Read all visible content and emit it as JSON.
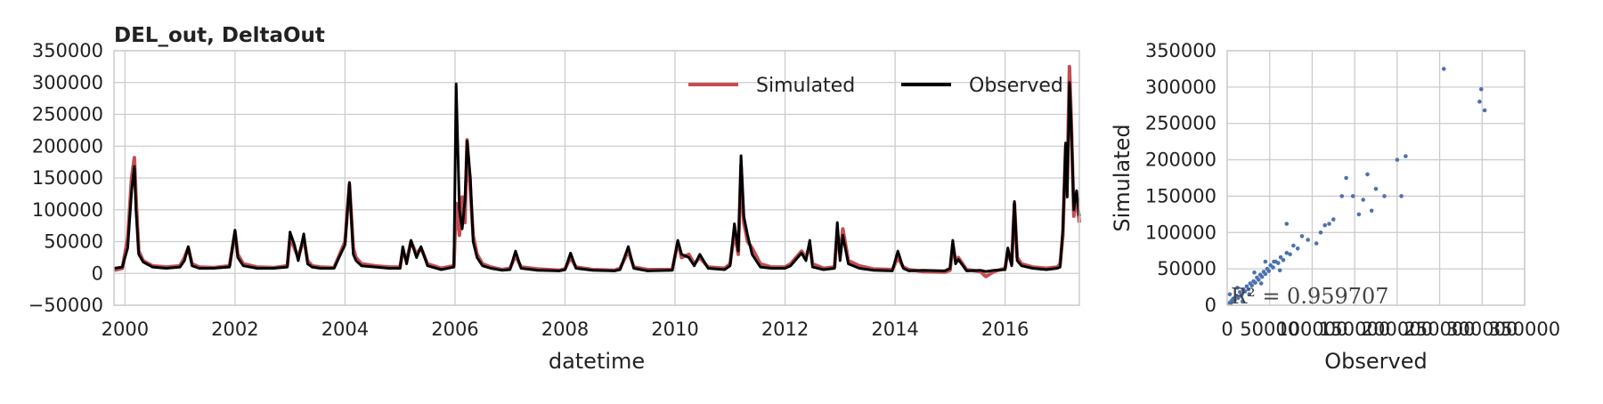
{
  "chart_data": [
    {
      "type": "line",
      "title": "DEL_out, DeltaOut",
      "xlabel": "datetime",
      "ylabel": "",
      "xlim": [
        1999.8,
        2017.35
      ],
      "ylim": [
        -50000,
        350000
      ],
      "xticks": [
        2000,
        2002,
        2004,
        2006,
        2008,
        2010,
        2012,
        2014,
        2016
      ],
      "xtick_labels": [
        "2000",
        "2002",
        "2004",
        "2006",
        "2008",
        "2010",
        "2012",
        "2014",
        "2016"
      ],
      "yticks": [
        -50000,
        0,
        50000,
        100000,
        150000,
        200000,
        250000,
        300000,
        350000
      ],
      "ytick_labels": [
        "−50000",
        "0",
        "50000",
        "100000",
        "150000",
        "200000",
        "250000",
        "300000",
        "350000"
      ],
      "grid": true,
      "legend_position": "top-right",
      "series": [
        {
          "name": "Simulated",
          "color": "#c44e52",
          "x": [
            1999.8,
            1999.95,
            2000.05,
            2000.12,
            2000.17,
            2000.2,
            2000.25,
            2000.33,
            2000.5,
            2000.75,
            2001.0,
            2001.08,
            2001.15,
            2001.22,
            2001.35,
            2001.6,
            2001.9,
            2002.0,
            2002.05,
            2002.15,
            2002.4,
            2002.7,
            2002.95,
            2003.0,
            2003.08,
            2003.15,
            2003.25,
            2003.32,
            2003.4,
            2003.55,
            2003.8,
            2004.0,
            2004.08,
            2004.15,
            2004.2,
            2004.3,
            2004.55,
            2004.8,
            2005.0,
            2005.05,
            2005.12,
            2005.2,
            2005.3,
            2005.38,
            2005.5,
            2005.75,
            2005.98,
            2006.02,
            2006.08,
            2006.13,
            2006.18,
            2006.22,
            2006.28,
            2006.33,
            2006.4,
            2006.5,
            2006.65,
            2006.85,
            2007.0,
            2007.1,
            2007.2,
            2007.5,
            2007.9,
            2008.0,
            2008.1,
            2008.2,
            2008.5,
            2008.9,
            2009.0,
            2009.15,
            2009.25,
            2009.5,
            2009.95,
            2010.05,
            2010.12,
            2010.25,
            2010.35,
            2010.45,
            2010.6,
            2010.9,
            2011.0,
            2011.08,
            2011.15,
            2011.2,
            2011.25,
            2011.32,
            2011.4,
            2011.55,
            2011.75,
            2012.0,
            2012.1,
            2012.3,
            2012.38,
            2012.45,
            2012.5,
            2012.7,
            2012.9,
            2012.95,
            2013.0,
            2013.05,
            2013.15,
            2013.35,
            2013.6,
            2013.95,
            2014.05,
            2014.15,
            2014.25,
            2014.5,
            2014.9,
            2015.0,
            2015.05,
            2015.1,
            2015.15,
            2015.3,
            2015.55,
            2015.65,
            2015.8,
            2016.0,
            2016.05,
            2016.12,
            2016.17,
            2016.22,
            2016.3,
            2016.5,
            2016.75,
            2016.95,
            2017.0,
            2017.05,
            2017.1,
            2017.13,
            2017.17,
            2017.2,
            2017.25,
            2017.3,
            2017.35
          ],
          "y": [
            5000,
            8000,
            55000,
            150000,
            182000,
            120000,
            35000,
            20000,
            12000,
            10000,
            12000,
            25000,
            40000,
            15000,
            10000,
            9000,
            12000,
            65000,
            30000,
            15000,
            10000,
            9000,
            12000,
            55000,
            40000,
            25000,
            55000,
            20000,
            12000,
            10000,
            9000,
            50000,
            140000,
            40000,
            25000,
            15000,
            12000,
            10000,
            10000,
            35000,
            20000,
            50000,
            30000,
            40000,
            15000,
            8000,
            12000,
            110000,
            60000,
            120000,
            80000,
            210000,
            130000,
            60000,
            30000,
            15000,
            10000,
            6000,
            8000,
            28000,
            10000,
            7000,
            5000,
            7000,
            25000,
            10000,
            6000,
            5000,
            8000,
            35000,
            10000,
            6000,
            6000,
            48000,
            25000,
            30000,
            15000,
            25000,
            10000,
            8000,
            15000,
            65000,
            30000,
            170000,
            80000,
            50000,
            40000,
            15000,
            10000,
            10000,
            15000,
            35000,
            25000,
            45000,
            15000,
            8000,
            10000,
            65000,
            30000,
            70000,
            20000,
            12000,
            7000,
            6000,
            25000,
            10000,
            6000,
            3000,
            2000,
            5000,
            45000,
            20000,
            25000,
            6000,
            3000,
            -5000,
            3000,
            8000,
            35000,
            15000,
            110000,
            25000,
            15000,
            10000,
            8000,
            10000,
            15000,
            60000,
            200000,
            150000,
            325000,
            250000,
            90000,
            120000,
            80000
          ]
        },
        {
          "name": "Observed",
          "color": "#000000",
          "x": [
            1999.8,
            1999.95,
            2000.05,
            2000.12,
            2000.17,
            2000.2,
            2000.25,
            2000.33,
            2000.5,
            2000.75,
            2001.0,
            2001.08,
            2001.15,
            2001.22,
            2001.35,
            2001.6,
            2001.9,
            2002.0,
            2002.05,
            2002.15,
            2002.4,
            2002.7,
            2002.95,
            2003.0,
            2003.08,
            2003.15,
            2003.25,
            2003.32,
            2003.4,
            2003.55,
            2003.8,
            2004.0,
            2004.08,
            2004.15,
            2004.2,
            2004.3,
            2004.55,
            2004.8,
            2005.0,
            2005.05,
            2005.12,
            2005.2,
            2005.3,
            2005.38,
            2005.5,
            2005.75,
            2005.98,
            2006.02,
            2006.08,
            2006.13,
            2006.18,
            2006.22,
            2006.28,
            2006.33,
            2006.4,
            2006.5,
            2006.65,
            2006.85,
            2007.0,
            2007.1,
            2007.2,
            2007.5,
            2007.9,
            2008.0,
            2008.1,
            2008.2,
            2008.5,
            2008.9,
            2009.0,
            2009.15,
            2009.25,
            2009.5,
            2009.95,
            2010.05,
            2010.12,
            2010.25,
            2010.35,
            2010.45,
            2010.6,
            2010.9,
            2011.0,
            2011.08,
            2011.15,
            2011.2,
            2011.25,
            2011.32,
            2011.4,
            2011.55,
            2011.75,
            2012.0,
            2012.1,
            2012.3,
            2012.38,
            2012.45,
            2012.5,
            2012.7,
            2012.9,
            2012.95,
            2013.0,
            2013.05,
            2013.15,
            2013.35,
            2013.6,
            2013.95,
            2014.05,
            2014.15,
            2014.25,
            2014.5,
            2014.9,
            2015.0,
            2015.05,
            2015.1,
            2015.15,
            2015.3,
            2015.55,
            2015.65,
            2015.8,
            2016.0,
            2016.05,
            2016.12,
            2016.17,
            2016.22,
            2016.3,
            2016.5,
            2016.75,
            2016.95,
            2017.0,
            2017.05,
            2017.1,
            2017.13,
            2017.17,
            2017.2,
            2017.25,
            2017.3,
            2017.35
          ],
          "y": [
            8000,
            10000,
            40000,
            130000,
            168000,
            100000,
            30000,
            18000,
            10000,
            8000,
            10000,
            20000,
            42000,
            12000,
            8000,
            8000,
            10000,
            68000,
            25000,
            12000,
            8000,
            8000,
            10000,
            65000,
            45000,
            20000,
            62000,
            15000,
            10000,
            8000,
            8000,
            45000,
            143000,
            30000,
            20000,
            12000,
            10000,
            8000,
            8000,
            42000,
            15000,
            52000,
            25000,
            42000,
            12000,
            6000,
            10000,
            298000,
            100000,
            70000,
            115000,
            208000,
            150000,
            50000,
            25000,
            12000,
            8000,
            5000,
            6000,
            35000,
            8000,
            5000,
            4000,
            6000,
            32000,
            8000,
            5000,
            4000,
            6000,
            42000,
            8000,
            4000,
            5000,
            52000,
            30000,
            25000,
            12000,
            30000,
            8000,
            6000,
            12000,
            78000,
            35000,
            185000,
            90000,
            60000,
            30000,
            10000,
            8000,
            8000,
            12000,
            32000,
            20000,
            52000,
            10000,
            6000,
            8000,
            80000,
            20000,
            60000,
            15000,
            8000,
            5000,
            4000,
            35000,
            8000,
            4000,
            5000,
            4000,
            8000,
            52000,
            15000,
            22000,
            4000,
            5000,
            3000,
            5000,
            6000,
            40000,
            12000,
            113000,
            20000,
            12000,
            8000,
            6000,
            8000,
            10000,
            70000,
            205000,
            120000,
            300000,
            240000,
            100000,
            130000,
            90000
          ]
        }
      ]
    },
    {
      "type": "scatter",
      "title": "",
      "xlabel": "Observed",
      "ylabel": "Simulated",
      "xlim": [
        0,
        350000
      ],
      "ylim": [
        0,
        350000
      ],
      "xticks": [
        0,
        50000,
        100000,
        150000,
        200000,
        250000,
        300000,
        350000
      ],
      "xtick_labels": [
        "0",
        "50000",
        "100000",
        "150000",
        "200000",
        "250000",
        "300000",
        "350000"
      ],
      "yticks": [
        0,
        50000,
        100000,
        150000,
        200000,
        250000,
        300000,
        350000
      ],
      "ytick_labels": [
        "0",
        "50000",
        "100000",
        "150000",
        "200000",
        "250000",
        "300000",
        "350000"
      ],
      "grid": true,
      "color": "#4c72b0",
      "annotation": "R² = 0.959707",
      "points": [
        [
          2000,
          3000
        ],
        [
          4000,
          2000
        ],
        [
          5000,
          6000
        ],
        [
          7000,
          9000
        ],
        [
          9000,
          7000
        ],
        [
          11000,
          13000
        ],
        [
          13000,
          10000
        ],
        [
          15000,
          18000
        ],
        [
          17000,
          14000
        ],
        [
          19000,
          22000
        ],
        [
          21000,
          19000
        ],
        [
          23000,
          26000
        ],
        [
          25000,
          22000
        ],
        [
          27000,
          30000
        ],
        [
          29000,
          27000
        ],
        [
          31000,
          33000
        ],
        [
          33000,
          31000
        ],
        [
          35000,
          38000
        ],
        [
          37000,
          35000
        ],
        [
          39000,
          42000
        ],
        [
          41000,
          39000
        ],
        [
          43000,
          46000
        ],
        [
          45000,
          43000
        ],
        [
          47000,
          50000
        ],
        [
          49000,
          47000
        ],
        [
          51000,
          55000
        ],
        [
          54000,
          52000
        ],
        [
          57000,
          60000
        ],
        [
          60000,
          58000
        ],
        [
          63000,
          66000
        ],
        [
          66000,
          62000
        ],
        [
          70000,
          72000
        ],
        [
          74000,
          70000
        ],
        [
          78000,
          82000
        ],
        [
          83000,
          78000
        ],
        [
          88000,
          95000
        ],
        [
          95000,
          90000
        ],
        [
          70000,
          112000
        ],
        [
          105000,
          85000
        ],
        [
          110000,
          100000
        ],
        [
          115000,
          110000
        ],
        [
          120000,
          112000
        ],
        [
          125000,
          118000
        ],
        [
          135000,
          150000
        ],
        [
          140000,
          175000
        ],
        [
          148000,
          150000
        ],
        [
          155000,
          125000
        ],
        [
          160000,
          145000
        ],
        [
          165000,
          180000
        ],
        [
          170000,
          130000
        ],
        [
          175000,
          160000
        ],
        [
          185000,
          150000
        ],
        [
          200000,
          200000
        ],
        [
          210000,
          205000
        ],
        [
          205000,
          150000
        ],
        [
          255000,
          325000
        ],
        [
          297000,
          280000
        ],
        [
          299000,
          297000
        ],
        [
          303000,
          268000
        ],
        [
          18000,
          5000
        ],
        [
          3000,
          15000
        ],
        [
          12000,
          24000
        ],
        [
          26000,
          15000
        ],
        [
          40000,
          30000
        ],
        [
          32000,
          45000
        ],
        [
          55000,
          60000
        ],
        [
          62000,
          48000
        ],
        [
          45000,
          60000
        ]
      ]
    }
  ]
}
